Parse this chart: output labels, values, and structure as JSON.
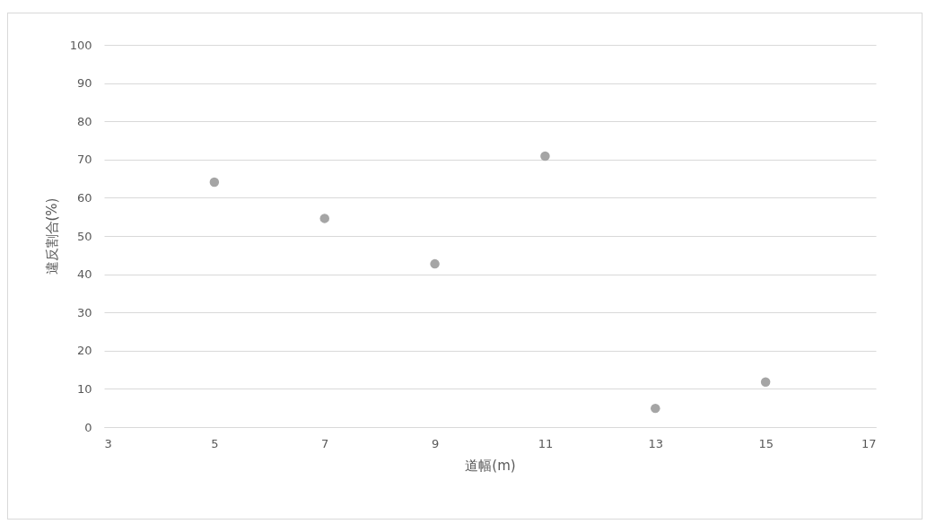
{
  "chart_data": {
    "type": "scatter",
    "xlabel": "道幅(m)",
    "ylabel": "違反割合(%)",
    "x": [
      5,
      7,
      9,
      11,
      13,
      15
    ],
    "series": [
      {
        "color": "#a5a5a5",
        "values": [
          64.1,
          54.6,
          42.7,
          70.9,
          4.9,
          11.8
        ]
      }
    ],
    "xlim": [
      3,
      17
    ],
    "xticks": [
      3,
      5,
      7,
      9,
      11,
      13,
      15,
      17
    ],
    "ylim": [
      0,
      100
    ],
    "yticks": [
      0,
      10,
      20,
      30,
      40,
      50,
      60,
      70,
      80,
      90,
      100
    ],
    "grid": "y",
    "marker": "circle"
  }
}
